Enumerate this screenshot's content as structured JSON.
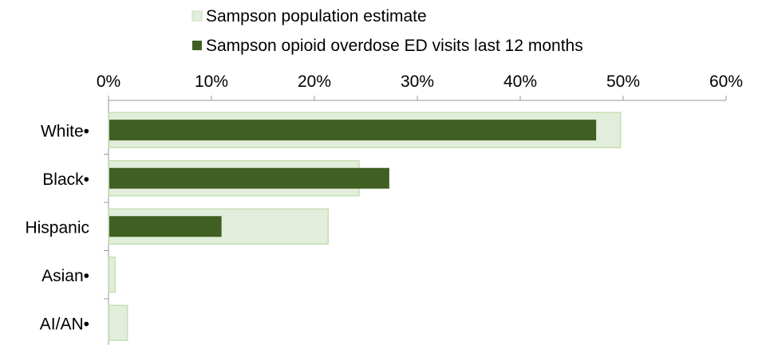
{
  "chart_data": {
    "type": "bar",
    "orientation": "horizontal",
    "title": "",
    "xlabel": "",
    "ylabel": "",
    "categories": [
      "White•",
      "Black•",
      "Hispanic",
      "Asian•",
      "AI/AN•"
    ],
    "series": [
      {
        "name": "Sampson population estimate",
        "color": "#e2eedb",
        "stroke": "#c7dfb4",
        "values": [
          0.497,
          0.243,
          0.213,
          0.006,
          0.018
        ]
      },
      {
        "name": "Sampson opioid overdose ED visits last 12 months",
        "color": "#3f5f23",
        "values": [
          0.473,
          0.272,
          0.109,
          0.0,
          0.0
        ]
      }
    ],
    "xlim": [
      0,
      0.6
    ],
    "x_ticks": [
      0,
      0.1,
      0.2,
      0.3,
      0.4,
      0.5,
      0.6
    ],
    "x_tick_labels": [
      "0%",
      "10%",
      "20%",
      "30%",
      "40%",
      "50%",
      "60%"
    ],
    "axis_position": "top",
    "grid": false,
    "legend_position": "top"
  }
}
